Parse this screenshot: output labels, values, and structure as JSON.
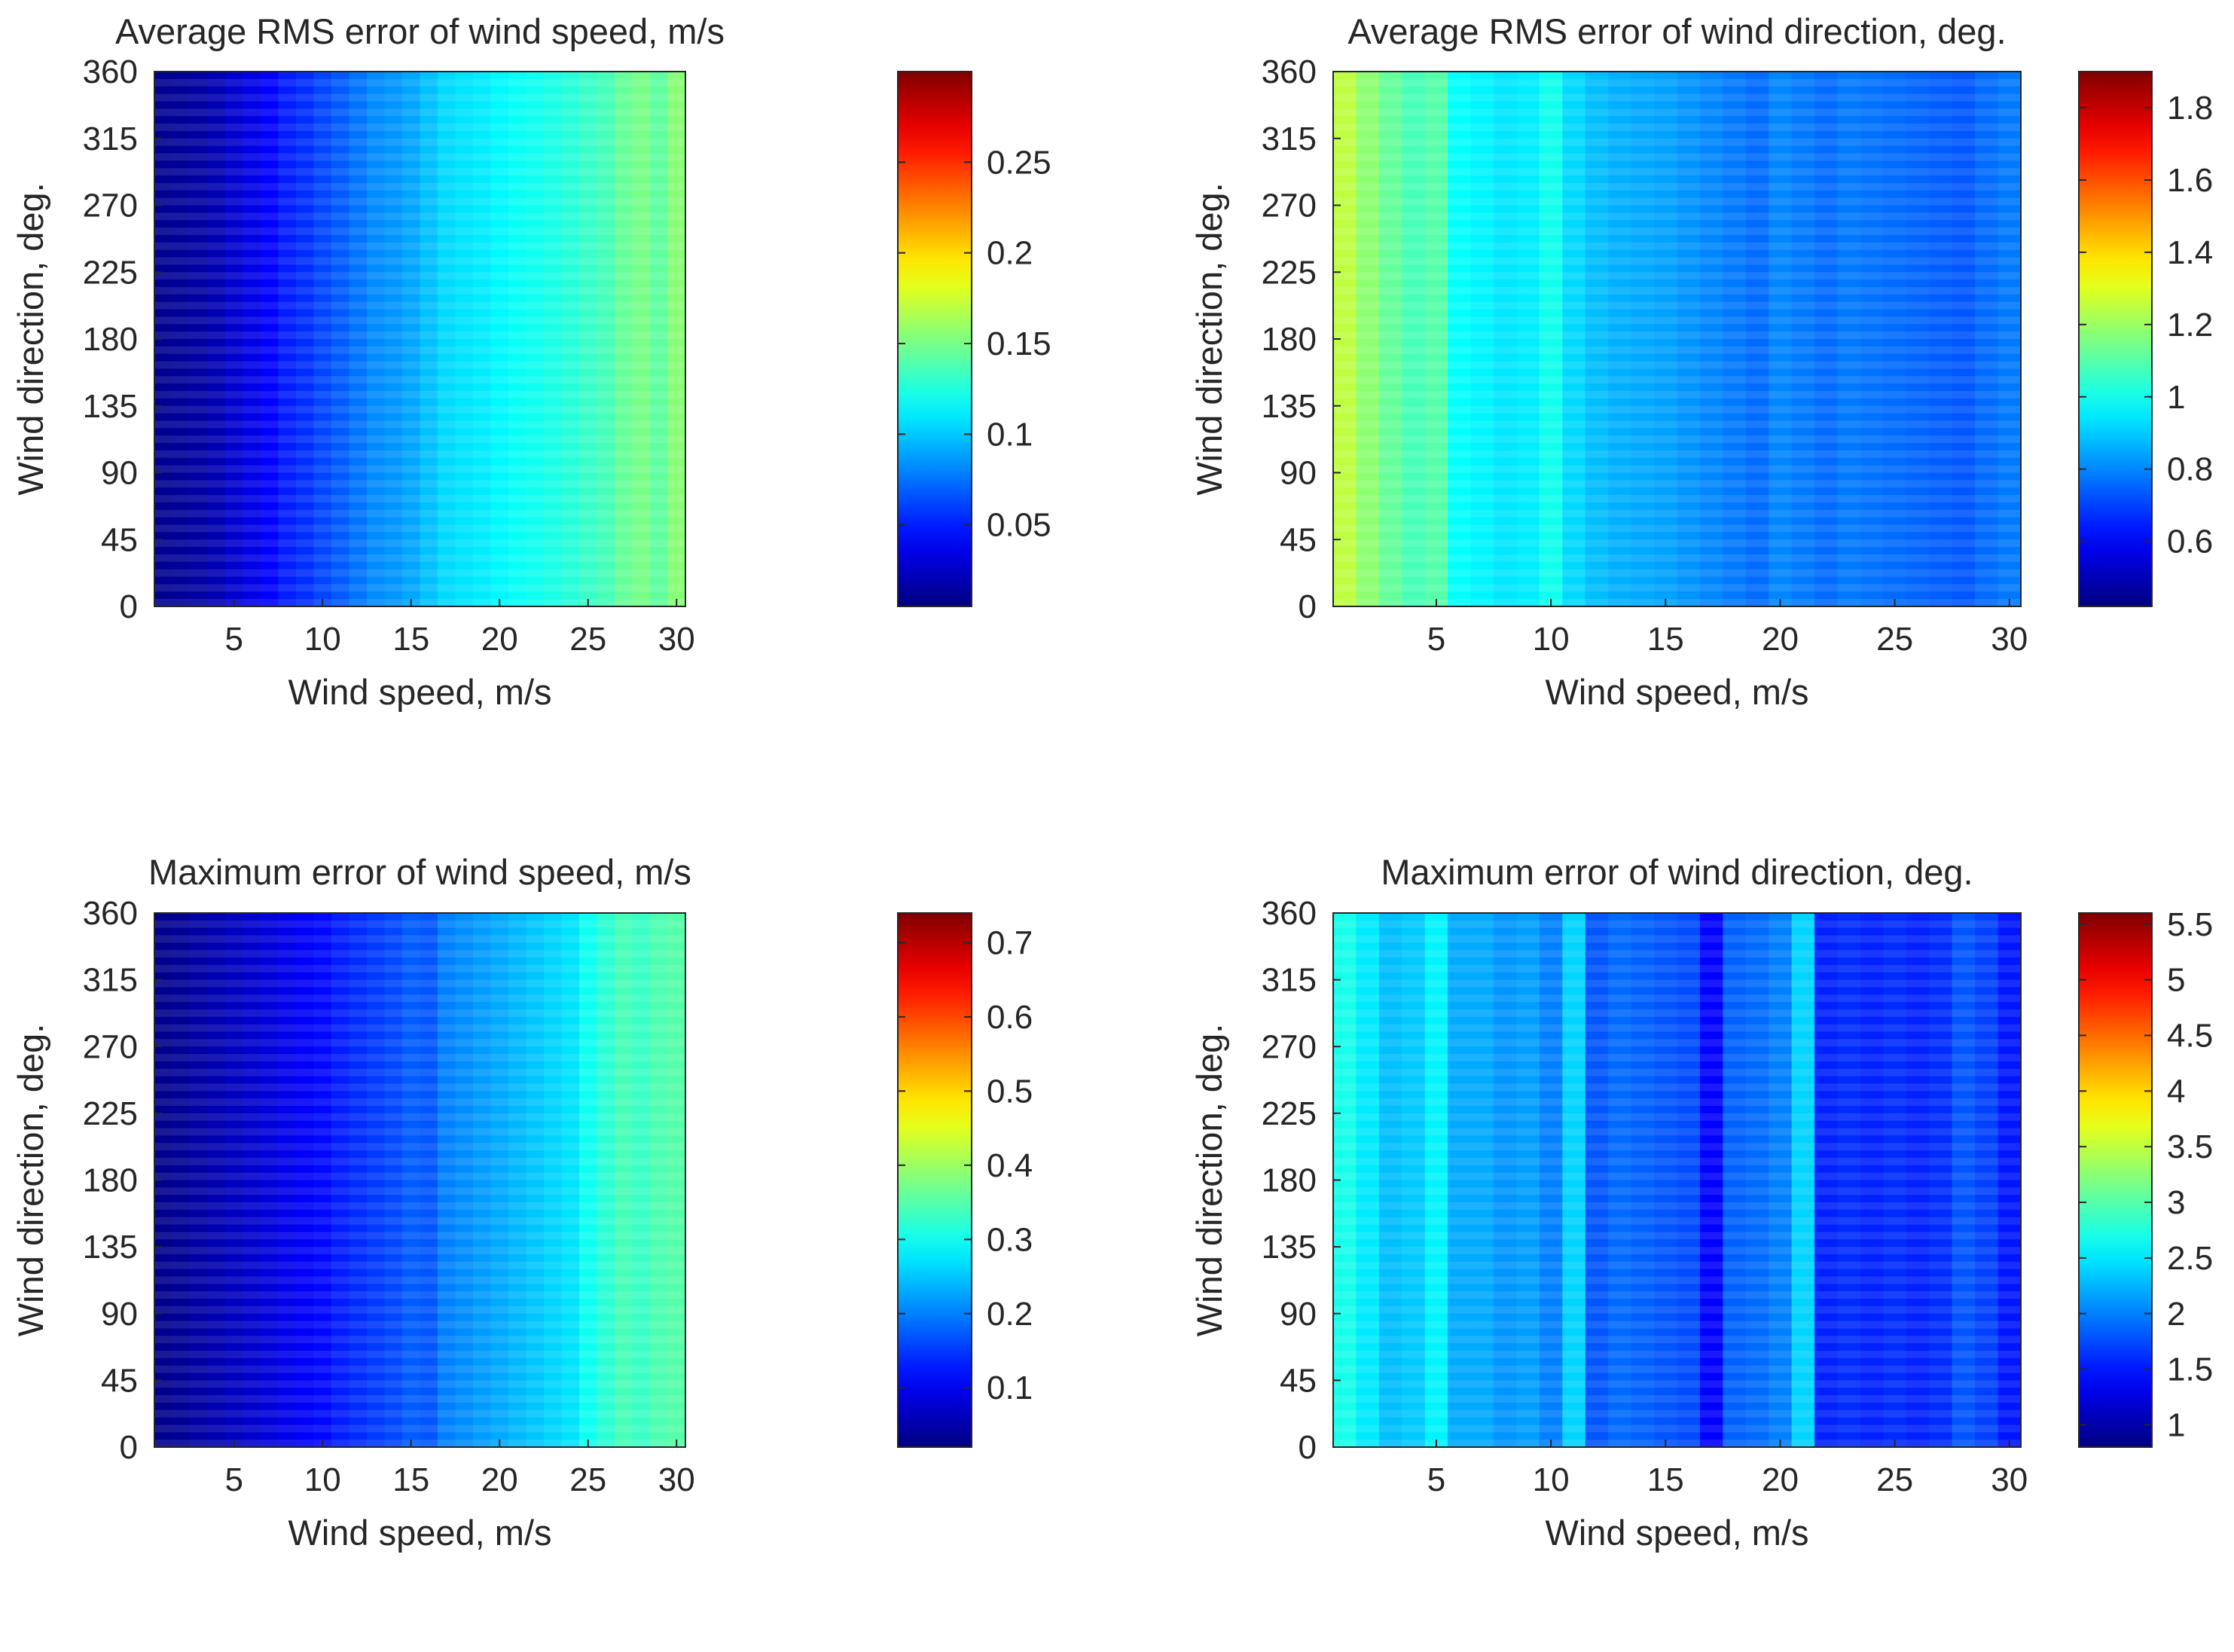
{
  "figure": {
    "colormap": "jet"
  },
  "chart_data": [
    {
      "type": "heatmap",
      "title": "Average RMS error of wind speed, m/s",
      "xlabel": "Wind speed, m/s",
      "ylabel": "Wind direction, deg.",
      "xlim": [
        1,
        30
      ],
      "ylim": [
        0,
        360
      ],
      "xticks": [
        5,
        10,
        15,
        20,
        25,
        30
      ],
      "yticks": [
        0,
        45,
        90,
        135,
        180,
        225,
        270,
        315,
        360
      ],
      "clim": [
        0.005,
        0.3
      ],
      "cticks": [
        0.05,
        0.1,
        0.15,
        0.2,
        0.25
      ],
      "column_values": [
        0.01,
        0.012,
        0.015,
        0.02,
        0.028,
        0.035,
        0.042,
        0.05,
        0.055,
        0.062,
        0.068,
        0.075,
        0.082,
        0.085,
        0.09,
        0.098,
        0.105,
        0.108,
        0.11,
        0.114,
        0.118,
        0.12,
        0.123,
        0.127,
        0.132,
        0.136,
        0.145,
        0.15,
        0.143,
        0.155
      ]
    },
    {
      "type": "heatmap",
      "title": "Average RMS error of wind direction, deg.",
      "xlabel": "Wind speed, m/s",
      "ylabel": "Wind direction, deg.",
      "xlim": [
        1,
        30
      ],
      "ylim": [
        0,
        360
      ],
      "xticks": [
        5,
        10,
        15,
        20,
        25,
        30
      ],
      "yticks": [
        0,
        45,
        90,
        135,
        180,
        225,
        270,
        315,
        360
      ],
      "clim": [
        0.42,
        1.9
      ],
      "cticks": [
        0.6,
        0.8,
        1,
        1.2,
        1.4,
        1.6,
        1.8
      ],
      "column_values": [
        1.25,
        1.18,
        1.12,
        1.08,
        1.1,
        0.98,
        0.96,
        0.94,
        0.95,
        1.0,
        0.92,
        0.88,
        0.86,
        0.85,
        0.84,
        0.82,
        0.8,
        0.78,
        0.76,
        0.8,
        0.78,
        0.76,
        0.78,
        0.77,
        0.76,
        0.75,
        0.74,
        0.73,
        0.76,
        0.78
      ]
    },
    {
      "type": "heatmap",
      "title": "Maximum error of wind speed, m/s",
      "xlabel": "Wind speed, m/s",
      "ylabel": "Wind direction, deg.",
      "xlim": [
        1,
        30
      ],
      "ylim": [
        0,
        360
      ],
      "xticks": [
        5,
        10,
        15,
        20,
        25,
        30
      ],
      "yticks": [
        0,
        45,
        90,
        135,
        180,
        225,
        270,
        315,
        360
      ],
      "clim": [
        0.02,
        0.74
      ],
      "cticks": [
        0.1,
        0.2,
        0.3,
        0.4,
        0.5,
        0.6,
        0.7
      ],
      "column_values": [
        0.03,
        0.035,
        0.045,
        0.055,
        0.065,
        0.075,
        0.085,
        0.095,
        0.105,
        0.115,
        0.13,
        0.14,
        0.15,
        0.16,
        0.175,
        0.17,
        0.2,
        0.21,
        0.22,
        0.23,
        0.24,
        0.25,
        0.26,
        0.27,
        0.3,
        0.32,
        0.34,
        0.33,
        0.345,
        0.35
      ]
    },
    {
      "type": "heatmap",
      "title": "Maximum error of wind direction, deg.",
      "xlabel": "Wind speed, m/s",
      "ylabel": "Wind direction, deg.",
      "xlim": [
        1,
        30
      ],
      "ylim": [
        0,
        360
      ],
      "xticks": [
        5,
        10,
        15,
        20,
        25,
        30
      ],
      "yticks": [
        0,
        45,
        90,
        135,
        180,
        225,
        270,
        315,
        360
      ],
      "clim": [
        0.8,
        5.6
      ],
      "cticks": [
        1,
        1.5,
        2,
        2.5,
        3,
        3.5,
        4,
        4.5,
        5,
        5.5
      ],
      "column_values": [
        2.7,
        2.5,
        2.3,
        2.35,
        2.55,
        2.2,
        2.2,
        2.1,
        2.15,
        2.0,
        2.4,
        1.8,
        1.9,
        1.85,
        1.8,
        1.75,
        1.4,
        1.85,
        1.9,
        2.0,
        2.4,
        1.55,
        1.6,
        1.55,
        1.6,
        1.55,
        1.6,
        1.8,
        1.7,
        1.5
      ]
    }
  ]
}
